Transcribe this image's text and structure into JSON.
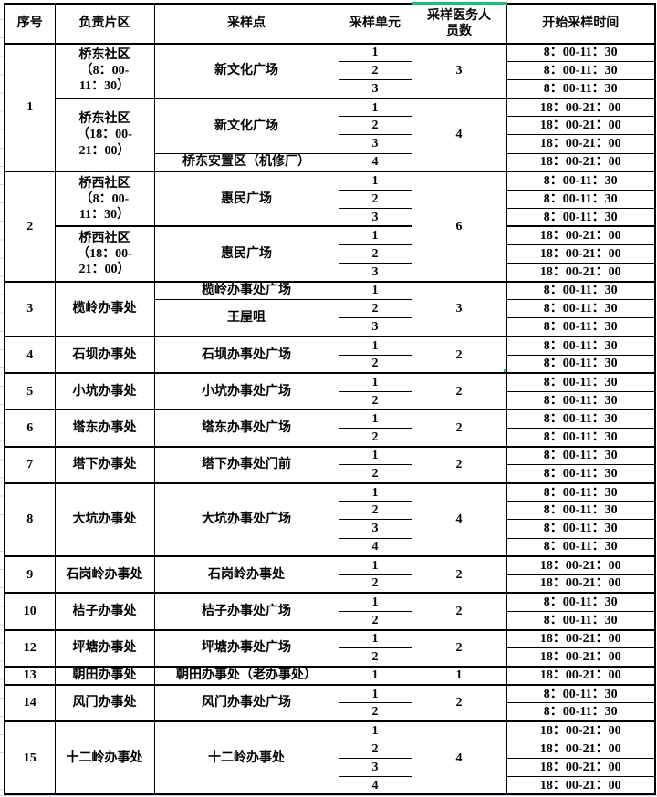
{
  "colors": {
    "selection": "#21bd77",
    "border": "#000000",
    "faint_gridline": "#c9d4e6"
  },
  "table": {
    "columns": [
      {
        "label": "序号"
      },
      {
        "label": "负责片区"
      },
      {
        "label": "采样点"
      },
      {
        "label": "采样单元"
      },
      {
        "label": "采样医务人\n员数"
      },
      {
        "label": "开始采样时间"
      }
    ],
    "blocks": [
      {
        "serial": "1",
        "areas": [
          {
            "text": "桥东社区\n（8：00-\n11：30）",
            "rows": 3
          },
          {
            "text": "桥东社区\n（18：00-\n21：00）",
            "rows": 4
          }
        ],
        "points": [
          {
            "text": "新文化广场",
            "rows": 3
          },
          {
            "text": "新文化广场",
            "rows": 3
          },
          {
            "text": "桥东安置区（机修厂）",
            "rows": 1
          }
        ],
        "staff": [
          {
            "text": "3",
            "rows": 3
          },
          {
            "text": "4",
            "rows": 4
          }
        ],
        "units": [
          "1",
          "2",
          "3",
          "1",
          "2",
          "3",
          "4"
        ],
        "times": [
          "8：00-11：30",
          "8：00-11：30",
          "8：00-11：30",
          "18：00-21：00",
          "18：00-21：00",
          "18：00-21：00",
          "18：00-21：00"
        ]
      },
      {
        "serial": "2",
        "areas": [
          {
            "text": "桥西社区\n（8：00-\n11：30）",
            "rows": 3
          },
          {
            "text": "桥西社区\n（18：00-\n21：00）",
            "rows": 3
          }
        ],
        "points": [
          {
            "text": "惠民广场",
            "rows": 3
          },
          {
            "text": "惠民广场",
            "rows": 3
          }
        ],
        "staff": [
          {
            "text": "6",
            "rows": 6
          }
        ],
        "units": [
          "1",
          "2",
          "3",
          "1",
          "2",
          "3"
        ],
        "times": [
          "8：00-11：30",
          "8：00-11：30",
          "8：00-11：30",
          "18：00-21：00",
          "18：00-21：00",
          "18：00-21：00"
        ]
      },
      {
        "serial": "3",
        "areas": [
          {
            "text": "榄岭办事处",
            "rows": 3
          }
        ],
        "points": [
          {
            "text": "榄岭办事处广场",
            "rows": 1
          },
          {
            "text": "王屋咀",
            "rows": 2
          }
        ],
        "staff": [
          {
            "text": "3",
            "rows": 3
          }
        ],
        "units": [
          "1",
          "2",
          "3"
        ],
        "times": [
          "8：00-11：30",
          "8：00-11：30",
          "8：00-11：30"
        ]
      },
      {
        "serial": "4",
        "areas": [
          {
            "text": "石坝办事处",
            "rows": 2
          }
        ],
        "points": [
          {
            "text": "石坝办事处广场",
            "rows": 2
          }
        ],
        "staff": [
          {
            "text": "2",
            "rows": 2,
            "selected": true
          }
        ],
        "units": [
          "1",
          "2"
        ],
        "times": [
          "8：00-11：30",
          "8：00-11：30"
        ]
      },
      {
        "serial": "5",
        "areas": [
          {
            "text": "小坑办事处",
            "rows": 2
          }
        ],
        "points": [
          {
            "text": "小坑办事处广场",
            "rows": 2
          }
        ],
        "staff": [
          {
            "text": "2",
            "rows": 2
          }
        ],
        "units": [
          "1",
          "2"
        ],
        "times": [
          "8：00-11：30",
          "8：00-11：30"
        ]
      },
      {
        "serial": "6",
        "areas": [
          {
            "text": "塔东办事处",
            "rows": 2
          }
        ],
        "points": [
          {
            "text": "塔东办事处广场",
            "rows": 2
          }
        ],
        "staff": [
          {
            "text": "2",
            "rows": 2
          }
        ],
        "units": [
          "1",
          "2"
        ],
        "times": [
          "8：00-11：30",
          "8：00-11：30"
        ]
      },
      {
        "serial": "7",
        "areas": [
          {
            "text": "塔下办事处",
            "rows": 2
          }
        ],
        "points": [
          {
            "text": "塔下办事处门前",
            "rows": 2
          }
        ],
        "staff": [
          {
            "text": "2",
            "rows": 2
          }
        ],
        "units": [
          "1",
          "2"
        ],
        "times": [
          "8：00-11：30",
          "8：00-11：30"
        ]
      },
      {
        "serial": "8",
        "areas": [
          {
            "text": "大坑办事处",
            "rows": 4
          }
        ],
        "points": [
          {
            "text": "大坑办事处广场",
            "rows": 4
          }
        ],
        "staff": [
          {
            "text": "4",
            "rows": 4
          }
        ],
        "units": [
          "1",
          "2",
          "3",
          "4"
        ],
        "times": [
          "8：00-11：30",
          "8：00-11：30",
          "8：00-11：30",
          "8：00-11：30"
        ]
      },
      {
        "serial": "9",
        "areas": [
          {
            "text": "石岗岭办事处",
            "rows": 2
          }
        ],
        "points": [
          {
            "text": "石岗岭办事处",
            "rows": 2
          }
        ],
        "staff": [
          {
            "text": "2",
            "rows": 2
          }
        ],
        "units": [
          "1",
          "2"
        ],
        "times": [
          "18：00-21：00",
          "18：00-21：00"
        ]
      },
      {
        "serial": "10",
        "areas": [
          {
            "text": "桔子办事处",
            "rows": 2
          }
        ],
        "points": [
          {
            "text": "桔子办事处广场",
            "rows": 2
          }
        ],
        "staff": [
          {
            "text": "2",
            "rows": 2
          }
        ],
        "units": [
          "1",
          "2"
        ],
        "times": [
          "8：00-11：30",
          "8：00-11：30"
        ]
      },
      {
        "serial": "12",
        "areas": [
          {
            "text": "坪塘办事处",
            "rows": 2
          }
        ],
        "points": [
          {
            "text": "坪塘办事处广场",
            "rows": 2
          }
        ],
        "staff": [
          {
            "text": "2",
            "rows": 2
          }
        ],
        "units": [
          "1",
          "2"
        ],
        "times": [
          "18：00-21：00",
          "18：00-21：00"
        ]
      },
      {
        "serial": "13",
        "areas": [
          {
            "text": "朝田办事处",
            "rows": 1
          }
        ],
        "points": [
          {
            "text": "朝田办事处（老办事处）",
            "rows": 1
          }
        ],
        "staff": [
          {
            "text": "1",
            "rows": 1
          }
        ],
        "units": [
          "1"
        ],
        "times": [
          "18：00-21：00"
        ]
      },
      {
        "serial": "14",
        "areas": [
          {
            "text": "风门办事处",
            "rows": 2
          }
        ],
        "points": [
          {
            "text": "风门办事处广场",
            "rows": 2
          }
        ],
        "staff": [
          {
            "text": "2",
            "rows": 2
          }
        ],
        "units": [
          "1",
          "2"
        ],
        "times": [
          "8：00-11：30",
          "8：00-11：30"
        ]
      },
      {
        "serial": "15",
        "areas": [
          {
            "text": "十二岭办事处",
            "rows": 4
          }
        ],
        "points": [
          {
            "text": "十二岭办事处",
            "rows": 4
          }
        ],
        "staff": [
          {
            "text": "4",
            "rows": 4
          }
        ],
        "units": [
          "1",
          "2",
          "3",
          "4"
        ],
        "times": [
          "18：00-21：00",
          "18：00-21：00",
          "18：00-21：00",
          "18：00-21：00"
        ]
      }
    ]
  }
}
